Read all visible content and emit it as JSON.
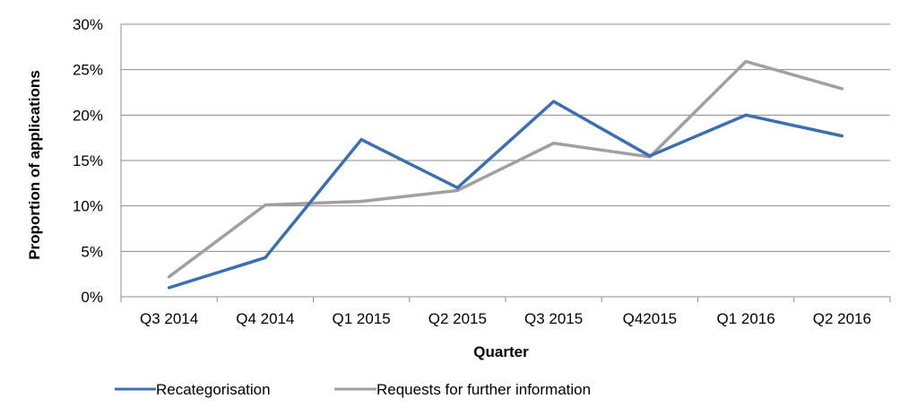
{
  "chart_data": {
    "type": "line",
    "title": "",
    "xlabel": "Quarter",
    "ylabel": "Proportion of applications",
    "categories": [
      "Q3 2014",
      "Q4 2014",
      "Q1 2015",
      "Q2 2015",
      "Q3 2015",
      "Q42015",
      "Q1 2016",
      "Q2 2016"
    ],
    "ylim": [
      0,
      30
    ],
    "yticks": [
      0,
      5,
      10,
      15,
      20,
      25,
      30
    ],
    "ytick_labels": [
      "0%",
      "5%",
      "10%",
      "15%",
      "20%",
      "25%",
      "30%"
    ],
    "grid": true,
    "legend_position": "bottom",
    "series": [
      {
        "name": "Recategorisation",
        "color": "#3d6fb0",
        "values": [
          1.0,
          4.3,
          17.3,
          12.0,
          21.5,
          15.5,
          20.0,
          17.7
        ]
      },
      {
        "name": "Requests for further information",
        "color": "#a0a0a0",
        "values": [
          2.2,
          10.1,
          10.5,
          11.7,
          16.9,
          15.4,
          25.9,
          22.9
        ]
      }
    ]
  }
}
